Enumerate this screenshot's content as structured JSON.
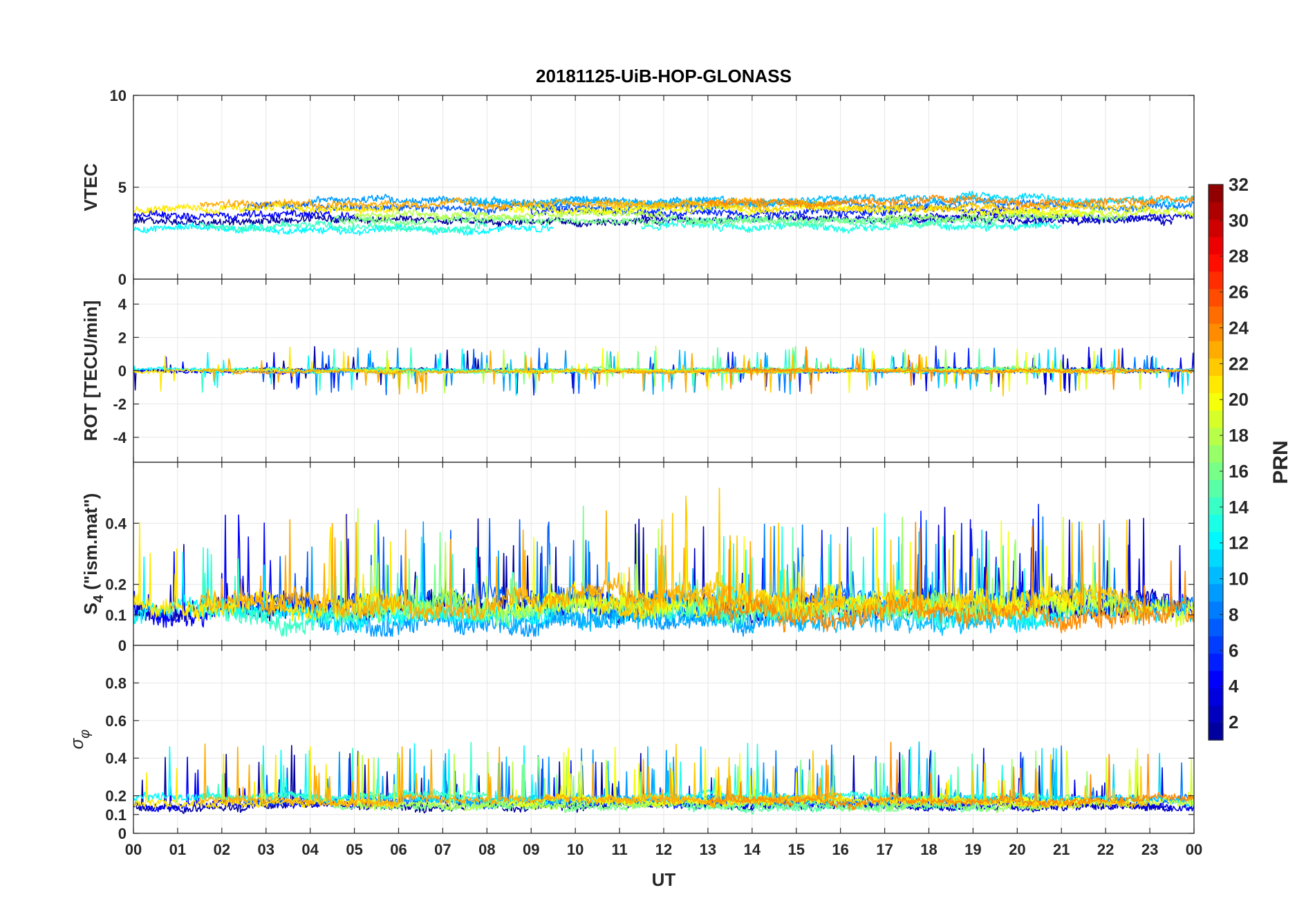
{
  "chart_data": {
    "type": "line",
    "title": "20181125-UiB-HOP-GLONASS",
    "xlabel": "UT",
    "xlim": [
      0,
      24
    ],
    "x_tick_labels": [
      "00",
      "01",
      "02",
      "03",
      "04",
      "05",
      "06",
      "07",
      "08",
      "09",
      "10",
      "11",
      "12",
      "13",
      "14",
      "15",
      "16",
      "17",
      "18",
      "19",
      "20",
      "21",
      "22",
      "23",
      "00"
    ],
    "grid": true,
    "panels": [
      {
        "name": "vtec",
        "ylabel": "VTEC",
        "ylim": [
          0,
          10
        ],
        "ytick_values": [
          0,
          5,
          10
        ],
        "ytick_labels": [
          "0",
          "5",
          "10"
        ],
        "baseline": 3.5,
        "spread": 0.9,
        "noise": 0.35,
        "spike": 0.0
      },
      {
        "name": "rot",
        "ylabel": "ROT [TECU/min]",
        "ylim": [
          -5.5,
          5.5
        ],
        "ytick_values": [
          -4,
          -2,
          0,
          2,
          4
        ],
        "ytick_labels": [
          "-4",
          "-2",
          "0",
          "2",
          "4"
        ],
        "baseline": 0.0,
        "spread": 0.05,
        "noise": 0.18,
        "spike": 1.4
      },
      {
        "name": "s4",
        "ylabel_main": "S",
        "ylabel_sub": "4",
        "ylabel_rest": " (\"ism.mat\")",
        "ylim": [
          0,
          0.6
        ],
        "ytick_values": [
          0,
          0.1,
          0.2,
          0.4
        ],
        "ytick_labels": [
          "0",
          "0.1",
          "0.2",
          "0.4"
        ],
        "baseline": 0.12,
        "spread": 0.03,
        "noise": 0.06,
        "spike": 0.3
      },
      {
        "name": "sigma_phi",
        "ylabel_main": "σ",
        "ylabel_sub": "φ",
        "ylim": [
          0,
          1
        ],
        "ytick_values": [
          0,
          0.1,
          0.2,
          0.4,
          0.6,
          0.8
        ],
        "ytick_labels": [
          "0",
          "0.1",
          "0.2",
          "0.4",
          "0.6",
          "0.8"
        ],
        "baseline": 0.17,
        "spread": 0.03,
        "noise": 0.035,
        "spike": 0.3
      }
    ],
    "series": [
      {
        "prn": 1,
        "start": 0.0,
        "end": 12.0
      },
      {
        "prn": 2,
        "start": 11.5,
        "end": 23.5
      },
      {
        "prn": 3,
        "start": 17.5,
        "end": 24.0
      },
      {
        "prn": 4,
        "start": 0.0,
        "end": 5.0
      },
      {
        "prn": 5,
        "start": 9.0,
        "end": 20.5
      },
      {
        "prn": 7,
        "start": 2.5,
        "end": 13.5
      },
      {
        "prn": 8,
        "start": 14.0,
        "end": 24.0
      },
      {
        "prn": 9,
        "start": 4.0,
        "end": 15.5
      },
      {
        "prn": 10,
        "start": 7.5,
        "end": 19.5
      },
      {
        "prn": 11,
        "start": 18.5,
        "end": 24.0
      },
      {
        "prn": 12,
        "start": 0.0,
        "end": 9.5
      },
      {
        "prn": 13,
        "start": 11.5,
        "end": 21.0
      },
      {
        "prn": 14,
        "start": 1.5,
        "end": 8.0
      },
      {
        "prn": 15,
        "start": 12.5,
        "end": 19.5
      },
      {
        "prn": 16,
        "start": 4.5,
        "end": 17.5
      },
      {
        "prn": 17,
        "start": 17.0,
        "end": 22.5
      },
      {
        "prn": 18,
        "start": 5.0,
        "end": 12.0
      },
      {
        "prn": 19,
        "start": 19.5,
        "end": 24.0
      },
      {
        "prn": 20,
        "start": 8.5,
        "end": 21.5
      },
      {
        "prn": 21,
        "start": 0.0,
        "end": 6.0
      },
      {
        "prn": 22,
        "start": 10.5,
        "end": 23.0
      },
      {
        "prn": 23,
        "start": 1.5,
        "end": 16.0
      },
      {
        "prn": 24,
        "start": 13.0,
        "end": 24.0
      }
    ],
    "colorbar": {
      "label": "PRN",
      "range": [
        1,
        32
      ],
      "ticks": [
        2,
        4,
        6,
        8,
        10,
        12,
        14,
        16,
        18,
        20,
        22,
        24,
        26,
        28,
        30,
        32
      ],
      "tick_labels": [
        "2",
        "4",
        "6",
        "8",
        "10",
        "12",
        "14",
        "16",
        "18",
        "20",
        "22",
        "24",
        "26",
        "28",
        "30",
        "32"
      ],
      "colormap": "jet",
      "levels": 32
    },
    "colormap_colors": [
      "#00008f",
      "#0000ff",
      "#00ffff",
      "#ffff00",
      "#ff0000",
      "#800000"
    ]
  }
}
